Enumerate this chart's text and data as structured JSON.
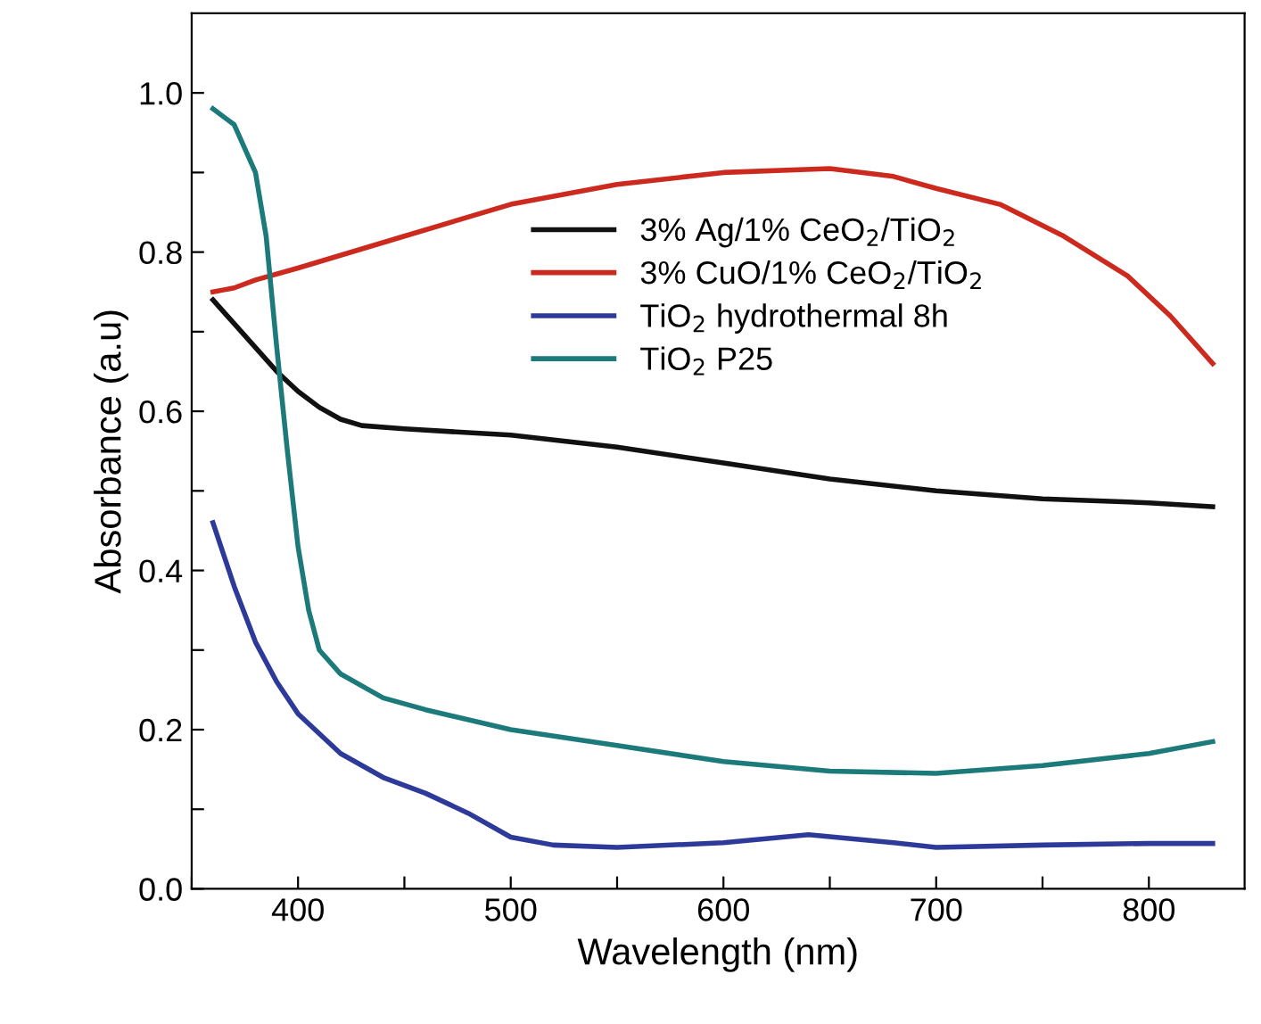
{
  "chart_data": {
    "type": "line",
    "xlabel": "Wavelength (nm)",
    "ylabel": "Absorbance (a.u)",
    "xlim": [
      350,
      845
    ],
    "ylim": [
      0,
      1.1
    ],
    "xticks": [
      {
        "value": 350,
        "label": null
      },
      400,
      {
        "value": 450,
        "label": null
      },
      500,
      {
        "value": 550,
        "label": null
      },
      600,
      {
        "value": 650,
        "label": null
      },
      700,
      {
        "value": 750,
        "label": null
      },
      800
    ],
    "yticks": [
      {
        "value": 0,
        "label": "0.0"
      },
      {
        "value": 0.1,
        "label": null
      },
      0.2,
      {
        "value": 0.3,
        "label": null
      },
      0.4,
      {
        "value": 0.5,
        "label": null
      },
      0.6,
      {
        "value": 0.7,
        "label": null
      },
      0.8,
      {
        "value": 0.9,
        "label": null
      },
      {
        "value": 1.0,
        "label": "1.0"
      }
    ],
    "grid": false,
    "legend": "top right",
    "marker": "none",
    "line_style": "solid",
    "series": [
      {
        "name": "3% Ag/1% CeO$_{2}$/TiO$_{2}$",
        "color": "#111111",
        "x": [
          360,
          370,
          380,
          390,
          400,
          410,
          420,
          430,
          450,
          500,
          550,
          600,
          650,
          700,
          750,
          800,
          830
        ],
        "values": [
          0.74,
          0.71,
          0.68,
          0.65,
          0.625,
          0.605,
          0.59,
          0.582,
          0.578,
          0.57,
          0.555,
          0.535,
          0.515,
          0.5,
          0.49,
          0.485,
          0.48
        ]
      },
      {
        "name": "3% CuO/1% CeO$_{2}$/TiO$_{2}$",
        "color": "#cc2a1e",
        "x": [
          360,
          370,
          380,
          400,
          450,
          500,
          550,
          600,
          650,
          680,
          700,
          730,
          760,
          790,
          810,
          830
        ],
        "values": [
          0.75,
          0.755,
          0.765,
          0.78,
          0.82,
          0.86,
          0.885,
          0.9,
          0.905,
          0.895,
          0.88,
          0.86,
          0.82,
          0.77,
          0.72,
          0.66
        ]
      },
      {
        "name": "TiO$_{2}$ hydrothermal 8h",
        "color": "#2e3a9a",
        "x": [
          360,
          370,
          380,
          390,
          400,
          420,
          440,
          460,
          480,
          500,
          520,
          550,
          600,
          640,
          680,
          700,
          750,
          800,
          830
        ],
        "values": [
          0.46,
          0.38,
          0.31,
          0.26,
          0.22,
          0.17,
          0.14,
          0.12,
          0.095,
          0.065,
          0.055,
          0.052,
          0.058,
          0.068,
          0.058,
          0.052,
          0.055,
          0.057,
          0.057
        ]
      },
      {
        "name": "TiO$_{2}$ P25",
        "color": "#1d7a7a",
        "x": [
          360,
          370,
          380,
          385,
          390,
          395,
          400,
          405,
          410,
          420,
          440,
          460,
          500,
          550,
          600,
          650,
          700,
          750,
          800,
          830
        ],
        "values": [
          0.98,
          0.96,
          0.9,
          0.82,
          0.68,
          0.55,
          0.43,
          0.35,
          0.3,
          0.27,
          0.24,
          0.225,
          0.2,
          0.18,
          0.16,
          0.148,
          0.145,
          0.155,
          0.17,
          0.185
        ]
      }
    ]
  }
}
